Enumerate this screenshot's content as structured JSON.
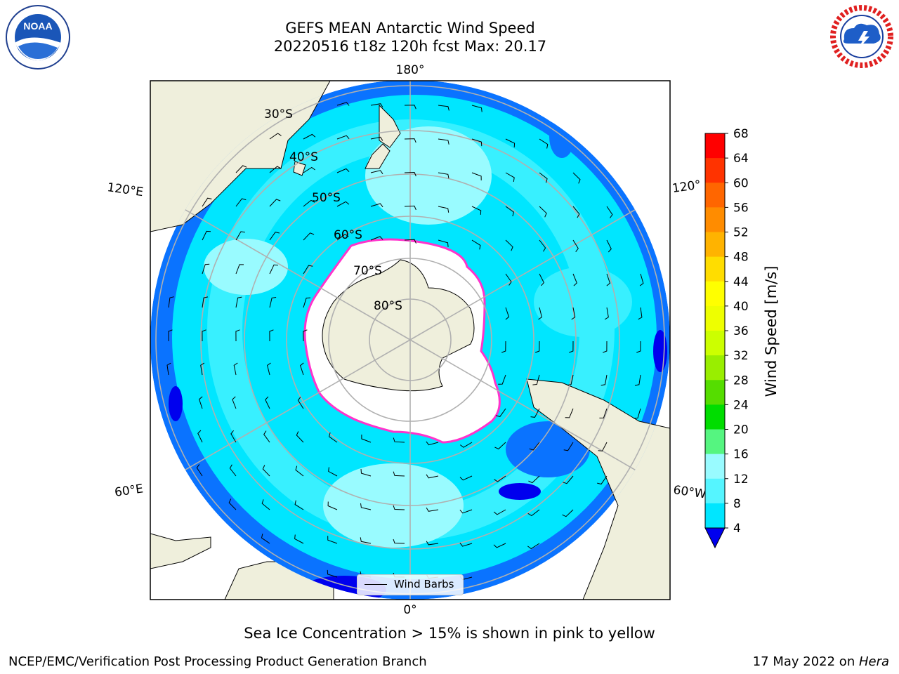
{
  "title": {
    "line1": "GEFS MEAN Antarctic Wind Speed",
    "line2": "20220516 t18z 120h fcst   Max: 20.17"
  },
  "logos": {
    "left": {
      "icon": "noaa-logo-icon",
      "text": "NOAA"
    },
    "right": {
      "icon": "nws-logo-icon",
      "text": "NATIONAL WEATHER SERVICE"
    }
  },
  "map": {
    "projection": "south-polar-stereographic",
    "longitude_labels": [
      "180°",
      "120°E",
      "120°",
      "60°E",
      "60°W",
      "0°"
    ],
    "latitude_labels": [
      "30°S",
      "40°S",
      "50°S",
      "60°S",
      "70°S",
      "80°S"
    ],
    "legend": {
      "label": "Wind Barbs"
    },
    "colors": {
      "land": "#efefdc",
      "ice": "#ffffff",
      "ice_edge": "#ff33cc",
      "ocean_4_8": "#0a73ff",
      "ocean_8_12": "#00e6ff",
      "ocean_12_16": "#38f0ff",
      "ocean_16_20": "#99fbff"
    }
  },
  "colorbar": {
    "label": "Wind Speed [m/s]",
    "ticks": [
      "68",
      "64",
      "60",
      "56",
      "52",
      "48",
      "44",
      "40",
      "36",
      "32",
      "28",
      "24",
      "20",
      "16",
      "12",
      "8",
      "4"
    ],
    "colors": [
      "#ff0000",
      "#ff3300",
      "#ff6600",
      "#ff8c00",
      "#ffb300",
      "#ffdd00",
      "#ffff00",
      "#eeff00",
      "#ccff00",
      "#99ee00",
      "#55dd00",
      "#00dd00",
      "#55f580",
      "#99fbff",
      "#55f5ff",
      "#00e6ff",
      "#0a73ff"
    ],
    "extend_color": "#0000ee"
  },
  "footnote": "Sea Ice Concentration > 15% is shown in pink to yellow",
  "footer": {
    "left": "NCEP/EMC/Verification Post Processing Product Generation Branch",
    "right_prefix": "17 May 2022 on ",
    "right_italic": "Hera"
  }
}
